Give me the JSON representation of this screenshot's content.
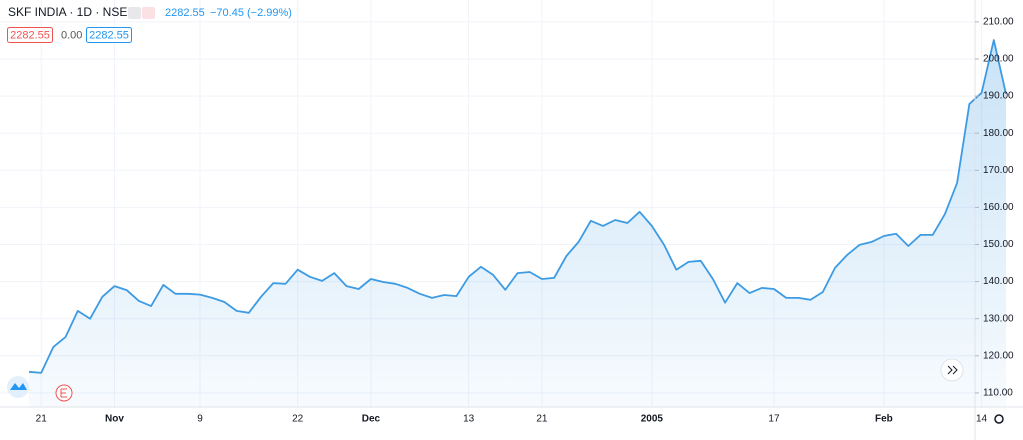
{
  "chart_data": {
    "type": "line",
    "title": "SKF INDIA · 1D · NSE",
    "price": "2282.55",
    "change": "−70.45 (−2.99%)",
    "legend_values": [
      "2282.55",
      "0.00",
      "2282.55"
    ],
    "color": "#3d9be3",
    "values": [
      115.7,
      115.4,
      122.4,
      125.1,
      132.1,
      130,
      135.9,
      138.8,
      137.7,
      134.8,
      133.4,
      139.1,
      136.7,
      136.7,
      136.5,
      135.6,
      134.5,
      132.1,
      131.6,
      135.9,
      139.6,
      139.4,
      143.2,
      141.3,
      140.2,
      142.3,
      138.8,
      138,
      140.7,
      139.9,
      139.4,
      138.3,
      136.7,
      135.6,
      136.4,
      136.1,
      141.3,
      144,
      141.8,
      137.8,
      142.3,
      142.6,
      140.7,
      141,
      146.9,
      150.7,
      156.4,
      155,
      156.6,
      155.8,
      158.8,
      155,
      149.9,
      143.2,
      145.3,
      145.6,
      140.7,
      134.3,
      139.6,
      136.9,
      138.3,
      138,
      135.6,
      135.6,
      135.1,
      137.2,
      143.7,
      147.2,
      149.9,
      150.7,
      152.3,
      152.9,
      149.6,
      152.6,
      152.6,
      158.2,
      166.6,
      187.9,
      190.9,
      205.1,
      190.6
    ],
    "xlim": [
      0,
      80
    ],
    "xticks": [
      {
        "value": 1,
        "label": "21"
      },
      {
        "value": 7,
        "label": "Nov"
      },
      {
        "value": 14,
        "label": "9"
      },
      {
        "value": 22,
        "label": "22"
      },
      {
        "value": 28,
        "label": "Dec"
      },
      {
        "value": 36,
        "label": "13"
      },
      {
        "value": 42,
        "label": "21"
      },
      {
        "value": 51,
        "label": "2005"
      },
      {
        "value": 61,
        "label": "17"
      },
      {
        "value": 70,
        "label": "Feb"
      },
      {
        "value": 78,
        "label": "14"
      }
    ],
    "ylim": [
      106.2,
      215.9
    ],
    "yticks": [
      {
        "value": 110,
        "label": "110.00"
      },
      {
        "value": 120,
        "label": "120.00"
      },
      {
        "value": 130,
        "label": "130.00"
      },
      {
        "value": 140,
        "label": "140.00"
      },
      {
        "value": 150,
        "label": "150.00"
      },
      {
        "value": 160,
        "label": "160.00"
      },
      {
        "value": 170,
        "label": "170.00"
      },
      {
        "value": 180,
        "label": "180.00"
      },
      {
        "value": 190,
        "label": "190.00"
      },
      {
        "value": 200,
        "label": "200.00"
      },
      {
        "value": 210,
        "label": "210.00"
      }
    ],
    "grid": true
  }
}
